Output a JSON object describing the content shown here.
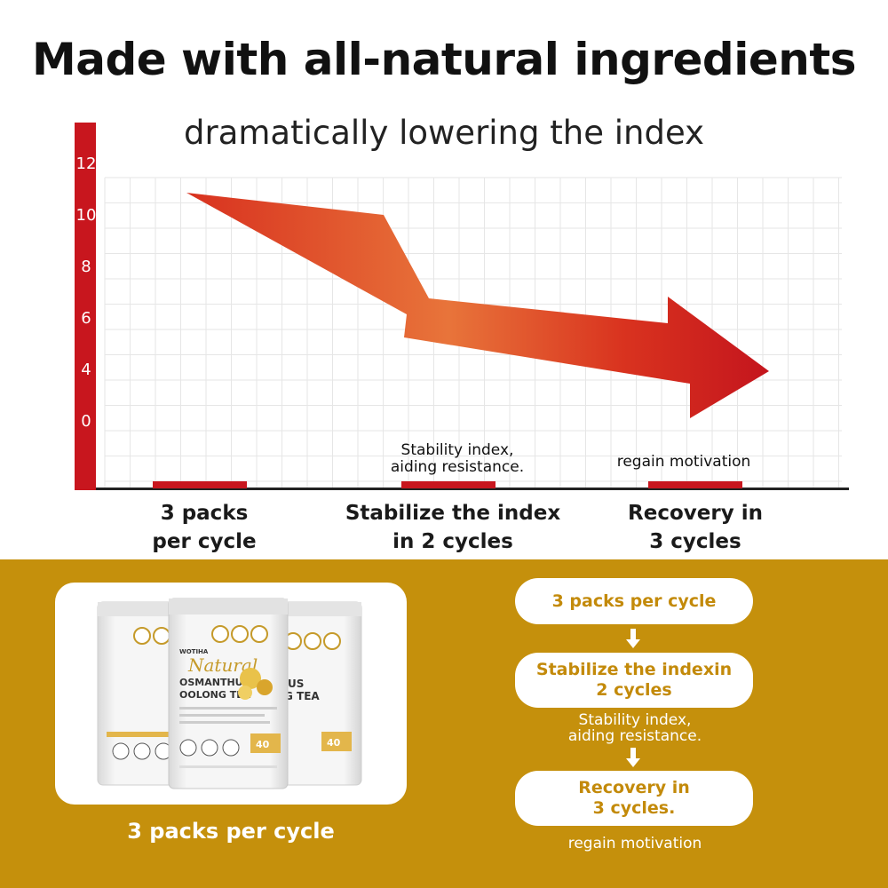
{
  "header": {
    "title": "Made with all-natural ingredients",
    "subtitle": "dramatically lowering the index"
  },
  "chart": {
    "y_ticks": [
      "12",
      "10",
      "8",
      "6",
      "4",
      "0"
    ],
    "stages": [
      {
        "lines": [
          "3 packs",
          "per cycle"
        ]
      },
      {
        "lines": [
          "Stabilize the index",
          "in 2 cycles"
        ]
      },
      {
        "lines": [
          "Recovery in",
          "3 cycles"
        ]
      }
    ],
    "annotations": [
      {
        "lines": [
          "Stability index,",
          "aiding resistance."
        ]
      },
      {
        "lines": [
          "regain motivation"
        ]
      }
    ],
    "colors": {
      "axis": "#c8161e",
      "arrow_start": "#e14a2c",
      "arrow_mid": "#e8743a",
      "arrow_end": "#c4151d",
      "grid": "#e6e6e6"
    }
  },
  "product": {
    "caption": "3 packs per cycle",
    "pack": {
      "brand": "WOTIHA",
      "script_title": "Natural",
      "name_line1": "OSMANTHUS",
      "name_line2": "OOLONG TEA",
      "side_name_line1": "US",
      "side_name_line2": "G TEA",
      "count": "40",
      "icons": [
        "stomach-icon",
        "intestine-icon",
        "heart-icon",
        "person-icon"
      ],
      "badges": [
        "100% NATURAL",
        "GLUTEN FREE",
        "SUGAR FREE"
      ]
    }
  },
  "steps": {
    "pills": [
      {
        "lines": [
          "3 packs per cycle"
        ]
      },
      {
        "lines": [
          "Stabilize the indexin",
          "2 cycles"
        ]
      },
      {
        "lines": [
          "Recovery in",
          "3 cycles."
        ]
      }
    ],
    "notes": [
      {
        "lines": [
          "Stability index,",
          "aiding resistance."
        ]
      },
      {
        "lines": [
          "regain motivation"
        ]
      }
    ]
  },
  "colors": {
    "panel": "#c5900c",
    "pill_text": "#c38a0a"
  }
}
